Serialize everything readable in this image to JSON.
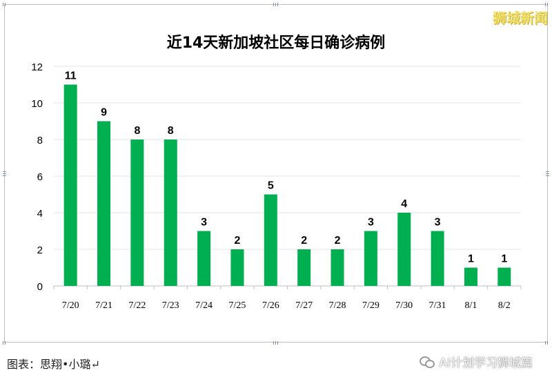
{
  "watermark_top": "狮城新闻",
  "caption": "图表：思翔•小璐↵",
  "wechat_source": "AI计划学习狮城篇",
  "colors": {
    "bar": "#00b050",
    "grid": "#e3e3e3",
    "axis": "#bfbfbf"
  },
  "chart_data": {
    "type": "bar",
    "title": "近14天新加坡社区每日确诊病例",
    "xlabel": "",
    "ylabel": "",
    "categories": [
      "7/20",
      "7/21",
      "7/22",
      "7/23",
      "7/24",
      "7/25",
      "7/26",
      "7/27",
      "7/28",
      "7/29",
      "7/30",
      "7/31",
      "8/1",
      "8/2"
    ],
    "series": [
      {
        "values": [
          11,
          9,
          8,
          8,
          3,
          2,
          5,
          2,
          2,
          3,
          4,
          3,
          1,
          1
        ]
      }
    ],
    "ylim": [
      0,
      12
    ],
    "yticks": [
      0,
      2,
      4,
      6,
      8,
      10,
      12
    ],
    "grid": true,
    "data_labels": true
  }
}
